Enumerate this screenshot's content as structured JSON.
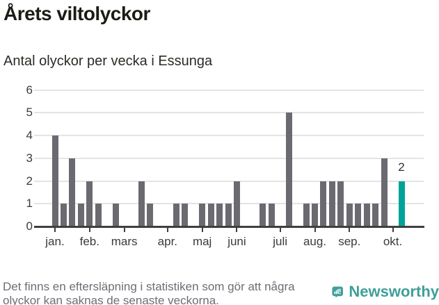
{
  "title": "Årets viltolyckor",
  "subtitle": "Antal olyckor per vecka i Essunga",
  "footer": {
    "line1": "Det finns en eftersläpning i statistiken som gör att några",
    "line2": "olyckor kan saknas de senaste veckorna."
  },
  "branding": {
    "name": "Newsworthy",
    "logo_icon": "bar-chart-speech-bubble-icon",
    "color": "#3f9f99"
  },
  "chart_data": {
    "type": "bar",
    "title": "Årets viltolyckor",
    "subtitle": "Antal olyckor per vecka i Essunga",
    "xlabel": "",
    "ylabel": "",
    "x_unit": "vecka",
    "values": [
      4,
      1,
      3,
      1,
      2,
      1,
      0,
      1,
      0,
      0,
      2,
      1,
      0,
      0,
      1,
      1,
      0,
      1,
      1,
      1,
      1,
      2,
      0,
      0,
      1,
      1,
      0,
      5,
      0,
      1,
      1,
      2,
      2,
      2,
      1,
      1,
      1,
      1,
      3,
      0,
      2
    ],
    "highlight_index": 40,
    "last_value_label": "2",
    "ylim": [
      0,
      6
    ],
    "yticks": [
      0,
      1,
      2,
      3,
      4,
      5,
      6
    ],
    "grid": "horizontal",
    "legend": "none",
    "month_ticks": [
      {
        "label": "jan.",
        "week": 0
      },
      {
        "label": "feb.",
        "week": 4
      },
      {
        "label": "mars",
        "week": 8
      },
      {
        "label": "apr.",
        "week": 13
      },
      {
        "label": "maj",
        "week": 17
      },
      {
        "label": "juni",
        "week": 21
      },
      {
        "label": "juli",
        "week": 26
      },
      {
        "label": "aug.",
        "week": 30
      },
      {
        "label": "sep.",
        "week": 34
      },
      {
        "label": "okt.",
        "week": 39
      }
    ],
    "colors": {
      "bar": "#6a6a70",
      "highlight": "#00a39a",
      "gridline": "#e4e4e4",
      "axis": "#3f3f3f",
      "label": "#3a3a3a"
    }
  }
}
